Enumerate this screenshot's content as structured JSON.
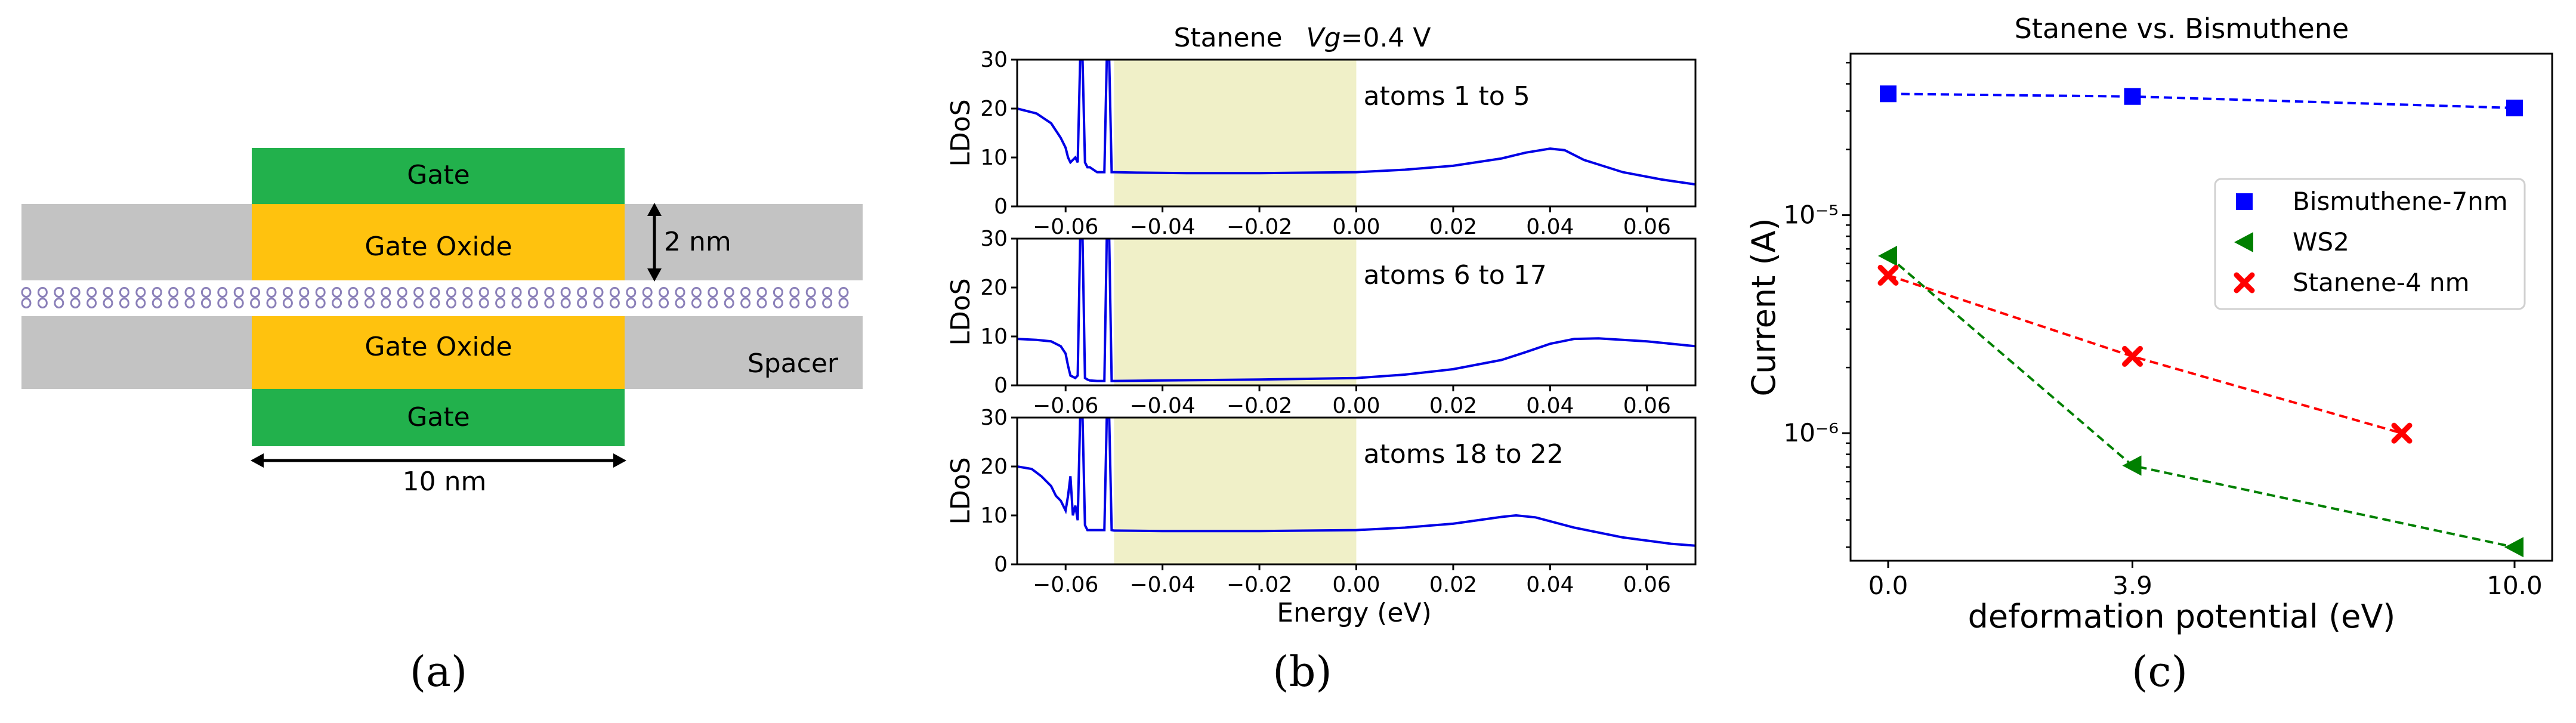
{
  "panel_labels": [
    "(a)",
    "(b)",
    "(c)"
  ],
  "diagram": {
    "gate_top_label": "Gate",
    "gate_oxide_top_label": "Gate Oxide",
    "gate_oxide_bottom_label": "Gate Oxide",
    "gate_bottom_label": "Gate",
    "spacer_label": "Spacer",
    "thickness_label": "2 nm",
    "length_label": "10 nm",
    "colors": {
      "gate": "#22b14c",
      "oxide": "#ffc20e",
      "spacer": "#c3c3c3",
      "atoms": "#8a7fb8"
    }
  },
  "chart_data": [
    {
      "type": "line",
      "title_prefix": "Stanene",
      "title_var": "Vg",
      "title_value": "=0.4 V",
      "xlabel": "Energy (eV)",
      "ylabel": "LDoS",
      "xlim": [
        -0.07,
        0.07
      ],
      "ylim": [
        0,
        30
      ],
      "xticks": [
        "−0.06",
        "−0.04",
        "−0.02",
        "0.00",
        "0.02",
        "0.04",
        "0.06"
      ],
      "xtick_values": [
        -0.06,
        -0.04,
        -0.02,
        0.0,
        0.02,
        0.04,
        0.06
      ],
      "yticks": [
        "0",
        "10",
        "20",
        "30"
      ],
      "ytick_values": [
        0,
        10,
        20,
        30
      ],
      "shaded_region": [
        -0.05,
        0.0
      ],
      "shade_color": "#f0f0c8",
      "line_color": "#0000e6",
      "subplots": [
        {
          "annotation": "atoms 1 to 5",
          "x": [
            -0.07,
            -0.066,
            -0.063,
            -0.061,
            -0.06,
            -0.0595,
            -0.059,
            -0.058,
            -0.0575,
            -0.057,
            -0.0565,
            -0.056,
            -0.0555,
            -0.055,
            -0.0535,
            -0.052,
            -0.0515,
            -0.051,
            -0.0505,
            -0.05,
            -0.045,
            -0.035,
            -0.02,
            0.0,
            0.01,
            0.02,
            0.03,
            0.035,
            0.04,
            0.043,
            0.047,
            0.055,
            0.063,
            0.07
          ],
          "y": [
            20,
            19,
            17,
            14,
            12,
            10,
            9,
            10,
            9,
            30,
            30,
            9,
            8,
            8,
            7,
            7,
            30,
            30,
            7,
            7,
            6.9,
            6.8,
            6.8,
            7,
            7.5,
            8.3,
            9.8,
            11,
            11.8,
            11.5,
            9.5,
            7,
            5.5,
            4.5
          ]
        },
        {
          "annotation": "atoms 6 to 17",
          "x": [
            -0.07,
            -0.066,
            -0.063,
            -0.061,
            -0.06,
            -0.0595,
            -0.059,
            -0.058,
            -0.0575,
            -0.057,
            -0.0565,
            -0.056,
            -0.0555,
            -0.055,
            -0.0535,
            -0.052,
            -0.0515,
            -0.051,
            -0.0505,
            -0.05,
            -0.04,
            -0.02,
            0.0,
            0.01,
            0.02,
            0.03,
            0.035,
            0.04,
            0.045,
            0.05,
            0.06,
            0.07
          ],
          "y": [
            9.5,
            9.3,
            9,
            8,
            6.5,
            4,
            2,
            1.5,
            2,
            30,
            30,
            1.5,
            1.2,
            1,
            0.9,
            0.9,
            30,
            30,
            0.9,
            0.9,
            1,
            1.2,
            1.5,
            2.2,
            3.3,
            5.2,
            6.8,
            8.5,
            9.5,
            9.6,
            9,
            8
          ]
        },
        {
          "annotation": "atoms 18 to 22",
          "x": [
            -0.07,
            -0.067,
            -0.065,
            -0.063,
            -0.062,
            -0.061,
            -0.06,
            -0.0595,
            -0.059,
            -0.0585,
            -0.058,
            -0.0575,
            -0.057,
            -0.0565,
            -0.056,
            -0.0555,
            -0.055,
            -0.0535,
            -0.052,
            -0.0515,
            -0.051,
            -0.0505,
            -0.05,
            -0.04,
            -0.02,
            0.0,
            0.01,
            0.02,
            0.03,
            0.033,
            0.037,
            0.045,
            0.055,
            0.065,
            0.07
          ],
          "y": [
            20,
            19.5,
            18,
            16,
            14,
            13,
            11,
            14,
            18,
            10,
            12,
            9,
            30,
            30,
            8,
            7,
            7,
            7,
            7,
            30,
            30,
            7,
            6.9,
            6.8,
            6.8,
            7,
            7.5,
            8.3,
            9.7,
            10,
            9.6,
            7.5,
            5.5,
            4.2,
            3.8
          ]
        }
      ]
    },
    {
      "type": "line",
      "title": "Stanene vs. Bismuthene",
      "xlabel": "deformation potential (eV)",
      "ylabel": "Current (A)",
      "yscale": "log",
      "xlim": [
        -0.6,
        10.6
      ],
      "ylim": [
        2.6e-07,
        5.5e-05
      ],
      "xticks": [
        "0.0",
        "3.9",
        "10.0"
      ],
      "xtick_values": [
        0.0,
        3.9,
        10.0
      ],
      "yticks": [
        "10⁻⁶",
        "10⁻⁵"
      ],
      "ytick_values": [
        1e-06,
        1e-05
      ],
      "series": [
        {
          "name": "Bismuthene-7nm",
          "color": "#0000ff",
          "marker": "square",
          "x": [
            0.0,
            3.9,
            10.0
          ],
          "y": [
            3.6e-05,
            3.5e-05,
            3.1e-05
          ]
        },
        {
          "name": "WS2",
          "color": "#008000",
          "marker": "triangle-left",
          "x": [
            0.0,
            3.9,
            10.0
          ],
          "y": [
            6.5e-06,
            7.1e-07,
            3e-07
          ]
        },
        {
          "name": "Stanene-4 nm",
          "color": "#ff0000",
          "marker": "x",
          "x": [
            0.0,
            3.9,
            8.2
          ],
          "y": [
            5.3e-06,
            2.25e-06,
            1e-06
          ]
        }
      ],
      "legend_position": "center-right"
    }
  ]
}
